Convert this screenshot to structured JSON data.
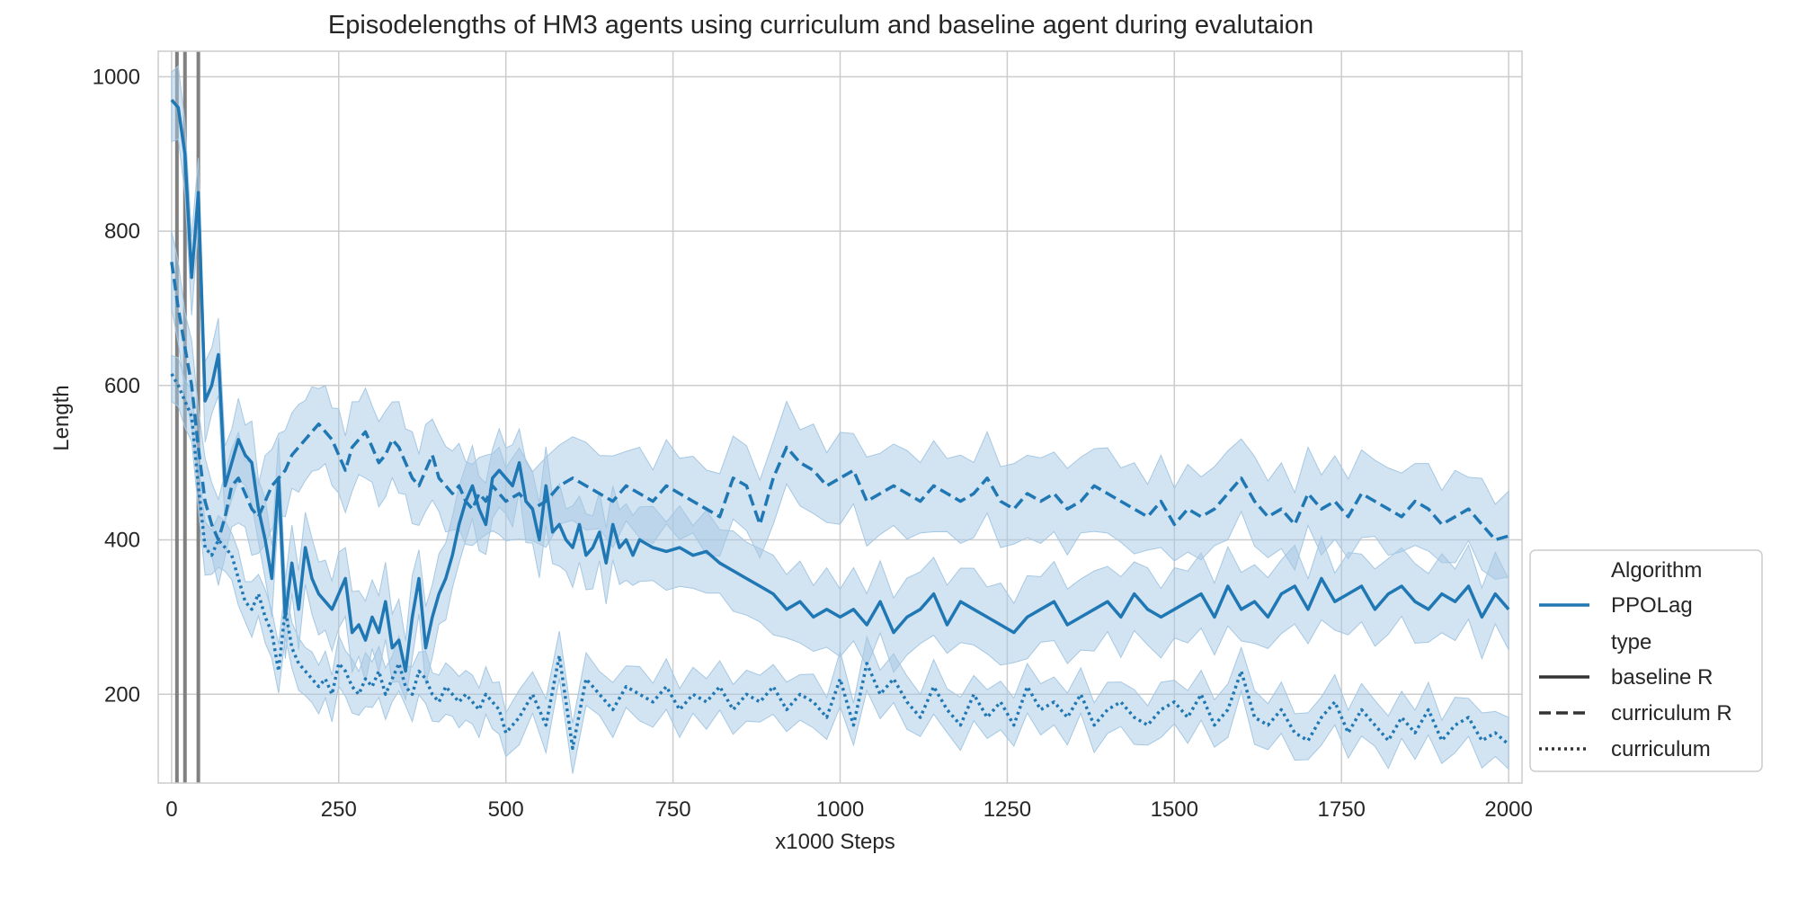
{
  "chart_data": {
    "type": "line",
    "title": "Episodelengths of HM3 agents using curriculum and baseline agent during evalutaion",
    "xlabel": "x1000 Steps",
    "ylabel": "Length",
    "xlim": [
      -20,
      2020
    ],
    "ylim": [
      85,
      1033
    ],
    "xticks": [
      0,
      250,
      500,
      750,
      1000,
      1250,
      1500,
      1750,
      2000
    ],
    "yticks": [
      200,
      400,
      600,
      800,
      1000
    ],
    "grid": true,
    "legend_position": "lower-right",
    "colors": {
      "line": "#1f77b4",
      "band": "#a6c8e3",
      "vline": "#808080",
      "grid": "#cccccc",
      "frame": "#cccccc"
    },
    "vertical_lines_x": [
      8,
      20,
      40
    ],
    "legend": {
      "algorithm_header": "Algorithm",
      "algorithm_name": "PPOLag",
      "type_header": "type",
      "entries": [
        {
          "label": "baseline R",
          "dash": "solid"
        },
        {
          "label": "curriculum R",
          "dash": "dashed"
        },
        {
          "label": "curriculum",
          "dash": "dotted"
        }
      ]
    },
    "series": [
      {
        "name": "baseline R",
        "dash": "solid",
        "band_width": 45,
        "x": [
          0,
          10,
          20,
          30,
          40,
          50,
          60,
          70,
          80,
          90,
          100,
          110,
          120,
          130,
          140,
          150,
          160,
          170,
          180,
          190,
          200,
          210,
          220,
          230,
          240,
          250,
          260,
          270,
          280,
          290,
          300,
          310,
          320,
          330,
          340,
          350,
          360,
          370,
          380,
          390,
          400,
          410,
          420,
          430,
          440,
          450,
          460,
          470,
          480,
          490,
          500,
          510,
          520,
          530,
          540,
          550,
          560,
          570,
          580,
          590,
          600,
          610,
          620,
          630,
          640,
          650,
          660,
          670,
          680,
          690,
          700,
          720,
          740,
          760,
          780,
          800,
          820,
          840,
          860,
          880,
          900,
          920,
          940,
          960,
          980,
          1000,
          1020,
          1040,
          1060,
          1080,
          1100,
          1120,
          1140,
          1160,
          1180,
          1200,
          1220,
          1240,
          1260,
          1280,
          1300,
          1320,
          1340,
          1360,
          1380,
          1400,
          1420,
          1440,
          1460,
          1480,
          1500,
          1520,
          1540,
          1560,
          1580,
          1600,
          1620,
          1640,
          1660,
          1680,
          1700,
          1720,
          1740,
          1760,
          1780,
          1800,
          1820,
          1840,
          1860,
          1880,
          1900,
          1920,
          1940,
          1960,
          1980,
          2000
        ],
        "y": [
          970,
          960,
          900,
          740,
          850,
          580,
          600,
          640,
          470,
          500,
          530,
          510,
          500,
          440,
          400,
          350,
          480,
          300,
          370,
          310,
          390,
          350,
          330,
          320,
          310,
          330,
          350,
          280,
          290,
          270,
          300,
          280,
          320,
          260,
          270,
          230,
          300,
          350,
          260,
          300,
          330,
          350,
          380,
          420,
          450,
          470,
          440,
          420,
          480,
          490,
          480,
          470,
          500,
          450,
          440,
          400,
          470,
          410,
          420,
          400,
          390,
          420,
          380,
          390,
          410,
          370,
          420,
          390,
          400,
          380,
          400,
          390,
          385,
          390,
          380,
          385,
          370,
          360,
          350,
          340,
          330,
          310,
          320,
          300,
          310,
          300,
          310,
          290,
          320,
          280,
          300,
          310,
          330,
          290,
          320,
          310,
          300,
          290,
          280,
          300,
          310,
          320,
          290,
          300,
          310,
          320,
          300,
          330,
          310,
          300,
          310,
          320,
          330,
          300,
          340,
          310,
          320,
          300,
          330,
          340,
          310,
          350,
          320,
          330,
          340,
          310,
          330,
          340,
          320,
          310,
          330,
          320,
          340,
          300,
          330,
          310
        ]
      },
      {
        "name": "curriculum R",
        "dash": "dashed",
        "band_width": 50,
        "x": [
          0,
          10,
          20,
          30,
          40,
          50,
          60,
          70,
          80,
          90,
          100,
          110,
          120,
          130,
          140,
          150,
          160,
          170,
          180,
          190,
          200,
          210,
          220,
          230,
          240,
          250,
          260,
          270,
          280,
          290,
          300,
          310,
          320,
          330,
          340,
          350,
          360,
          370,
          380,
          390,
          400,
          410,
          420,
          430,
          440,
          450,
          460,
          470,
          480,
          490,
          500,
          520,
          540,
          560,
          580,
          600,
          620,
          640,
          660,
          680,
          700,
          720,
          740,
          760,
          780,
          800,
          820,
          840,
          860,
          880,
          900,
          920,
          940,
          960,
          980,
          1000,
          1020,
          1040,
          1060,
          1080,
          1100,
          1120,
          1140,
          1160,
          1180,
          1200,
          1220,
          1240,
          1260,
          1280,
          1300,
          1320,
          1340,
          1360,
          1380,
          1400,
          1420,
          1440,
          1460,
          1480,
          1500,
          1520,
          1540,
          1560,
          1580,
          1600,
          1620,
          1640,
          1660,
          1680,
          1700,
          1720,
          1740,
          1760,
          1780,
          1800,
          1820,
          1840,
          1860,
          1880,
          1900,
          1920,
          1940,
          1960,
          1980,
          2000
        ],
        "y": [
          760,
          700,
          650,
          600,
          520,
          450,
          420,
          400,
          430,
          470,
          480,
          460,
          440,
          430,
          450,
          470,
          480,
          490,
          510,
          520,
          530,
          540,
          550,
          540,
          530,
          510,
          490,
          520,
          530,
          540,
          520,
          500,
          510,
          530,
          520,
          500,
          480,
          470,
          490,
          510,
          480,
          470,
          460,
          470,
          450,
          440,
          460,
          450,
          470,
          460,
          450,
          460,
          440,
          450,
          470,
          480,
          470,
          460,
          450,
          470,
          460,
          450,
          470,
          460,
          450,
          440,
          430,
          480,
          470,
          420,
          480,
          520,
          500,
          490,
          470,
          480,
          490,
          450,
          460,
          470,
          460,
          450,
          470,
          460,
          450,
          460,
          480,
          450,
          440,
          460,
          450,
          460,
          440,
          450,
          470,
          460,
          450,
          440,
          430,
          450,
          420,
          440,
          430,
          440,
          460,
          480,
          450,
          430,
          440,
          420,
          460,
          440,
          450,
          430,
          460,
          450,
          440,
          430,
          450,
          440,
          420,
          430,
          440,
          420,
          400,
          405
        ]
      },
      {
        "name": "curriculum",
        "dash": "dotted",
        "band_width": 30,
        "x": [
          0,
          10,
          20,
          30,
          40,
          50,
          60,
          70,
          80,
          90,
          100,
          110,
          120,
          130,
          140,
          150,
          160,
          170,
          180,
          190,
          200,
          210,
          220,
          230,
          240,
          250,
          260,
          270,
          280,
          290,
          300,
          310,
          320,
          330,
          340,
          350,
          360,
          370,
          380,
          390,
          400,
          410,
          420,
          430,
          440,
          450,
          460,
          470,
          480,
          490,
          500,
          520,
          540,
          560,
          580,
          600,
          620,
          640,
          660,
          680,
          700,
          720,
          740,
          760,
          780,
          800,
          820,
          840,
          860,
          880,
          900,
          920,
          940,
          960,
          980,
          1000,
          1020,
          1040,
          1060,
          1080,
          1100,
          1120,
          1140,
          1160,
          1180,
          1200,
          1220,
          1240,
          1260,
          1280,
          1300,
          1320,
          1340,
          1360,
          1380,
          1400,
          1420,
          1440,
          1460,
          1480,
          1500,
          1520,
          1540,
          1560,
          1580,
          1600,
          1620,
          1640,
          1660,
          1680,
          1700,
          1720,
          1740,
          1760,
          1780,
          1800,
          1820,
          1840,
          1860,
          1880,
          1900,
          1920,
          1940,
          1960,
          1980,
          2000
        ],
        "y": [
          615,
          600,
          580,
          560,
          470,
          390,
          380,
          400,
          390,
          380,
          350,
          320,
          310,
          330,
          300,
          280,
          230,
          310,
          260,
          240,
          230,
          220,
          210,
          220,
          200,
          240,
          230,
          210,
          200,
          220,
          210,
          230,
          200,
          220,
          240,
          210,
          200,
          230,
          220,
          200,
          190,
          210,
          200,
          190,
          200,
          190,
          180,
          200,
          190,
          180,
          150,
          170,
          200,
          160,
          250,
          130,
          220,
          200,
          180,
          210,
          200,
          190,
          210,
          180,
          200,
          190,
          210,
          180,
          200,
          190,
          210,
          180,
          200,
          190,
          170,
          220,
          160,
          240,
          200,
          220,
          190,
          170,
          210,
          180,
          160,
          200,
          170,
          190,
          160,
          210,
          180,
          190,
          170,
          200,
          160,
          180,
          190,
          170,
          160,
          180,
          190,
          170,
          200,
          160,
          180,
          230,
          170,
          160,
          180,
          150,
          140,
          170,
          190,
          150,
          180,
          160,
          140,
          170,
          150,
          180,
          140,
          160,
          170,
          140,
          150,
          135
        ]
      }
    ]
  }
}
